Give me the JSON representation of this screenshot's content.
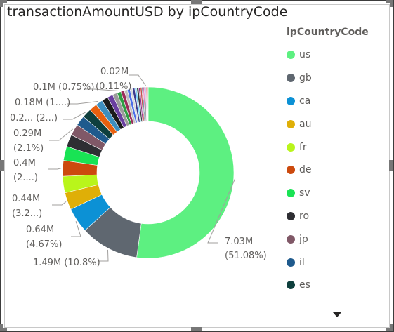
{
  "chart_data": {
    "type": "pie",
    "donut": true,
    "title": "transactionAmountUSD by ipCountryCode",
    "legend_title": "ipCountryCode",
    "legend_position": "right",
    "legend": [
      {
        "name": "us",
        "color": "#5DF081"
      },
      {
        "name": "gb",
        "color": "#5F6770"
      },
      {
        "name": "ca",
        "color": "#0C91D5"
      },
      {
        "name": "au",
        "color": "#DFAF07"
      },
      {
        "name": "fr",
        "color": "#B9F51B"
      },
      {
        "name": "de",
        "color": "#CC4A0E"
      },
      {
        "name": "sv",
        "color": "#19E354"
      },
      {
        "name": "ro",
        "color": "#2E2E33"
      },
      {
        "name": "jp",
        "color": "#805867"
      },
      {
        "name": "il",
        "color": "#1F5A8D"
      },
      {
        "name": "es",
        "color": "#0E3F3D"
      }
    ],
    "slices": [
      {
        "name": "us",
        "value": 7.03,
        "color": "#5DF081",
        "label": [
          "7.03M",
          "(51.08%)"
        ]
      },
      {
        "name": "gb",
        "value": 1.49,
        "color": "#5F6770",
        "label": [
          "1.49M (10.8%)"
        ]
      },
      {
        "name": "ca",
        "value": 0.64,
        "color": "#0C91D5",
        "label": [
          "0.64M",
          "(4.67%)"
        ]
      },
      {
        "name": "au",
        "value": 0.44,
        "color": "#DFAF07",
        "label": [
          "0.44M",
          "(3.2...)"
        ]
      },
      {
        "name": "fr",
        "value": 0.42,
        "color": "#B9F51B",
        "label": []
      },
      {
        "name": "de",
        "value": 0.4,
        "color": "#CC4A0E",
        "label": [
          "0.4M",
          "(2....)"
        ]
      },
      {
        "name": "sv",
        "value": 0.36,
        "color": "#19E354",
        "label": []
      },
      {
        "name": "ro",
        "value": 0.31,
        "color": "#2E2E33",
        "label": []
      },
      {
        "name": "jp",
        "value": 0.29,
        "color": "#805867",
        "label": [
          "0.29M",
          "(2.1%)"
        ]
      },
      {
        "name": "il",
        "value": 0.26,
        "color": "#1F5A8D",
        "label": []
      },
      {
        "name": "es",
        "value": 0.24,
        "color": "#0E3F3D",
        "label": [
          "0.2... (2...)"
        ]
      },
      {
        "name": "",
        "value": 0.2,
        "color": "#E8600F",
        "label": []
      },
      {
        "name": "",
        "value": 0.18,
        "color": "#3E8FBF",
        "label": [
          "0.18M (1....)"
        ]
      },
      {
        "name": "",
        "value": 0.16,
        "color": "#1B1B1B",
        "label": []
      },
      {
        "name": "",
        "value": 0.14,
        "color": "#6A3FA0",
        "label": []
      },
      {
        "name": "",
        "value": 0.12,
        "color": "#9B9B9B",
        "label": []
      },
      {
        "name": "",
        "value": 0.1,
        "color": "#2F9E44",
        "label": [
          "0.1M (0.75%)"
        ]
      },
      {
        "name": "",
        "value": 0.09,
        "color": "#9C2D5C",
        "label": []
      },
      {
        "name": "",
        "value": 0.08,
        "color": "#C0C0C0",
        "label": []
      },
      {
        "name": "",
        "value": 0.07,
        "color": "#4C6FE8",
        "label": []
      },
      {
        "name": "",
        "value": 0.06,
        "color": "#D9D9D9",
        "label": []
      },
      {
        "name": "",
        "value": 0.06,
        "color": "#3B3B8F",
        "label": []
      },
      {
        "name": "",
        "value": 0.05,
        "color": "#7FD3F5",
        "label": []
      },
      {
        "name": "",
        "value": 0.05,
        "color": "#3A3A3A",
        "label": []
      },
      {
        "name": "",
        "value": 0.04,
        "color": "#8F2D8F",
        "label": []
      },
      {
        "name": "",
        "value": 0.04,
        "color": "#C74E4E",
        "label": []
      },
      {
        "name": "",
        "value": 0.03,
        "color": "#2B6E7A",
        "label": []
      },
      {
        "name": "",
        "value": 0.03,
        "color": "#E05AB0",
        "label": []
      },
      {
        "name": "",
        "value": 0.03,
        "color": "#5A5A5A",
        "label": []
      },
      {
        "name": "",
        "value": 0.02,
        "color": "#9E7BD6",
        "label": [
          "0.02M",
          "(0.11%)"
        ]
      },
      {
        "name": "",
        "value": 0.02,
        "color": "#F04A4A",
        "label": []
      },
      {
        "name": "",
        "value": 0.015,
        "color": "#2DB5A5",
        "label": []
      },
      {
        "name": "",
        "value": 0.015,
        "color": "#7A1E1E",
        "label": []
      }
    ]
  }
}
